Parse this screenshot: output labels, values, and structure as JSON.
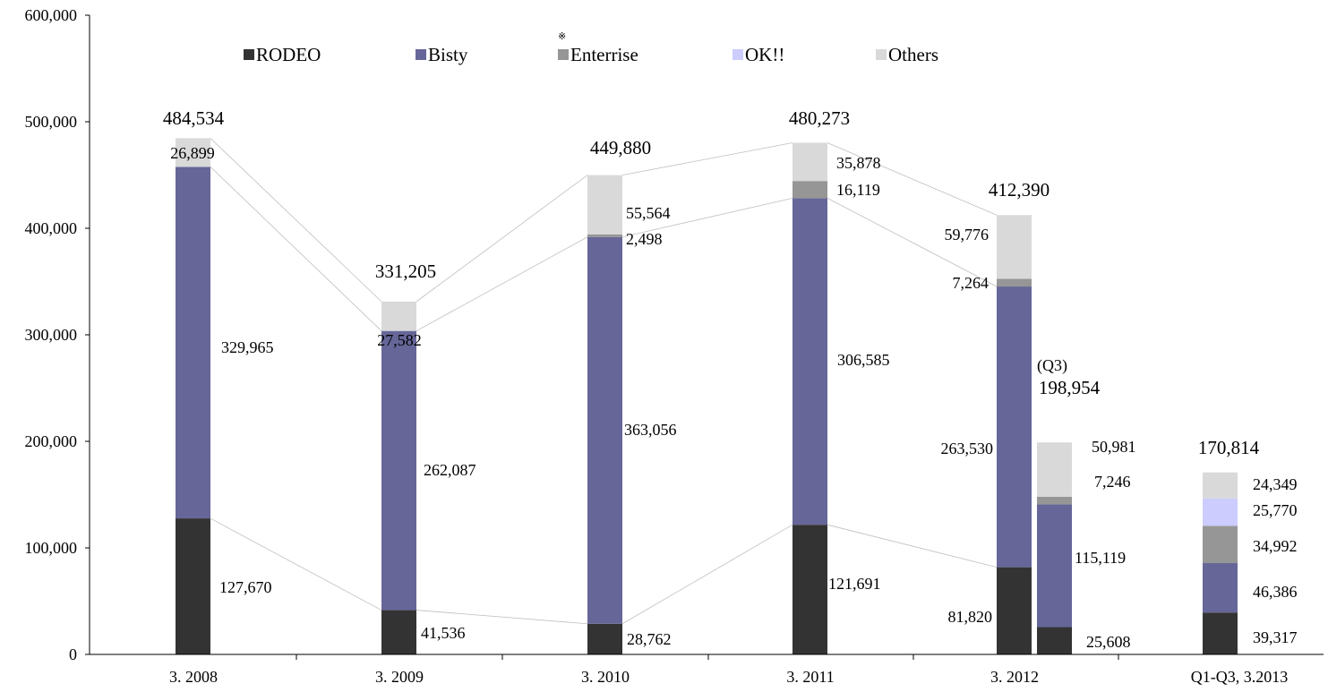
{
  "chart_data": {
    "type": "bar",
    "stacked": true,
    "title": "",
    "xlabel": "",
    "ylabel": "",
    "ylim": [
      0,
      600000
    ],
    "yticks": [
      0,
      100000,
      200000,
      300000,
      400000,
      500000,
      600000
    ],
    "ytick_labels": [
      "0",
      "100,000",
      "200,000",
      "300,000",
      "400,000",
      "500,000",
      "600,000"
    ],
    "grid": false,
    "legend_position": "top",
    "legend_note_mark": "※",
    "categories": [
      "3. 2008",
      "3. 2009",
      "3. 2010",
      "3. 2011",
      "3. 2012",
      "Q1-Q3, 3.2013"
    ],
    "series": [
      {
        "name": "RODEO",
        "color": "#333333"
      },
      {
        "name": "Bisty",
        "color": "#666699"
      },
      {
        "name": "Enterrise",
        "color": "#969696"
      },
      {
        "name": "OK!!",
        "color": "#CCCCFF"
      },
      {
        "name": "Others",
        "color": "#D9D9D9"
      }
    ],
    "bars": [
      {
        "category": "3. 2008",
        "values": {
          "RODEO": 127670,
          "Bisty": 329965,
          "Enterrise": 0,
          "OK!!": 0,
          "Others": 26899
        },
        "labels": [
          "127,670",
          "329,965",
          "",
          "",
          "26,899"
        ],
        "total": "484,534"
      },
      {
        "category": "3. 2009",
        "values": {
          "RODEO": 41536,
          "Bisty": 262087,
          "Enterrise": 0,
          "OK!!": 0,
          "Others": 27582
        },
        "labels": [
          "41,536",
          "262,087",
          "",
          "",
          "27,582"
        ],
        "total": "331,205"
      },
      {
        "category": "3. 2010",
        "values": {
          "RODEO": 28762,
          "Bisty": 363056,
          "Enterrise": 2498,
          "OK!!": 0,
          "Others": 55564
        },
        "labels": [
          "28,762",
          "363,056",
          "2,498",
          "",
          "55,564"
        ],
        "total": "449,880"
      },
      {
        "category": "3. 2011",
        "values": {
          "RODEO": 121691,
          "Bisty": 306585,
          "Enterrise": 16119,
          "OK!!": 0,
          "Others": 35878
        },
        "labels": [
          "121,691",
          "306,585",
          "16,119",
          "",
          "35,878"
        ],
        "total": "480,273"
      },
      {
        "category": "3. 2012",
        "values": {
          "RODEO": 81820,
          "Bisty": 263530,
          "Enterrise": 7264,
          "OK!!": 0,
          "Others": 59776
        },
        "labels": [
          "81,820",
          "263,530",
          "7,264",
          "",
          "59,776"
        ],
        "total": "412,390"
      },
      {
        "category": "3. 2012",
        "sub_label": "(Q3)",
        "values": {
          "RODEO": 25608,
          "Bisty": 115119,
          "Enterrise": 7246,
          "OK!!": 0,
          "Others": 50981
        },
        "labels": [
          "25,608",
          "115,119",
          "7,246",
          "",
          "50,981"
        ],
        "total": "198,954"
      },
      {
        "category": "Q1-Q3, 3.2013",
        "values": {
          "RODEO": 39317,
          "Bisty": 46386,
          "Enterrise": 34992,
          "OK!!": 25770,
          "Others": 24349
        },
        "labels": [
          "39,317",
          "46,386",
          "34,992",
          "25,770",
          "24,349"
        ],
        "total": "170,814"
      }
    ]
  }
}
